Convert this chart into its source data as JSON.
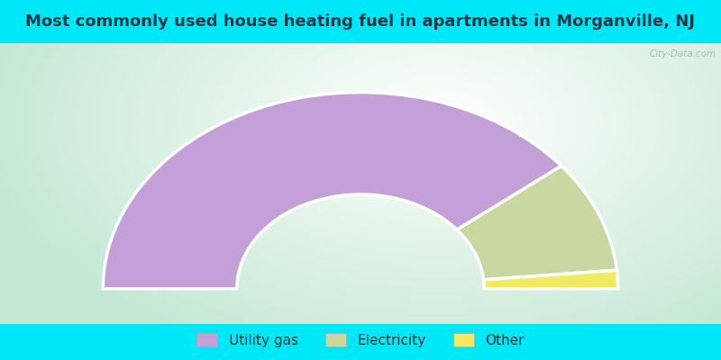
{
  "title": "Most commonly used house heating fuel in apartments in Morganville, NJ",
  "title_color": "#1a3a4a",
  "bg_cyan": "#00e8f8",
  "segments": [
    {
      "label": "Utility gas",
      "value": 78.5,
      "color": "#c4a0d8"
    },
    {
      "label": "Electricity",
      "value": 18.5,
      "color": "#c8d8a0"
    },
    {
      "label": "Other",
      "value": 3.0,
      "color": "#f0eb60"
    }
  ],
  "legend_labels": [
    "Utility gas",
    "Electricity",
    "Other"
  ],
  "legend_colors": [
    "#c4a0d8",
    "#c8d8a0",
    "#f0eb60"
  ],
  "outer_r": 1.0,
  "inner_r": 0.48,
  "figsize": [
    8.0,
    4.0
  ],
  "dpi": 100
}
